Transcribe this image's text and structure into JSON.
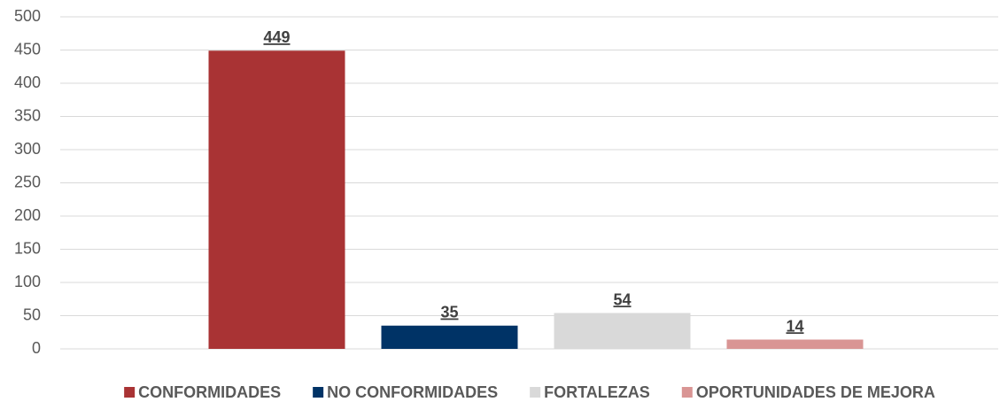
{
  "chart_data": {
    "type": "bar",
    "categories": [
      null
    ],
    "series": [
      {
        "name": "CONFORMIDADES",
        "color": "#a93334",
        "values": [
          449
        ]
      },
      {
        "name": "NO CONFORMIDADES",
        "color": "#003366",
        "values": [
          35
        ]
      },
      {
        "name": "FORTALEZAS",
        "color": "#d9d9d9",
        "values": [
          54
        ]
      },
      {
        "name": "OPORTUNIDADES DE MEJORA",
        "color": "#d99594",
        "values": [
          14
        ]
      }
    ],
    "ylim": [
      0,
      500
    ],
    "yticks": [
      0,
      50,
      100,
      150,
      200,
      250,
      300,
      350,
      400,
      450,
      500
    ],
    "grid": true,
    "legend": "bottom"
  }
}
